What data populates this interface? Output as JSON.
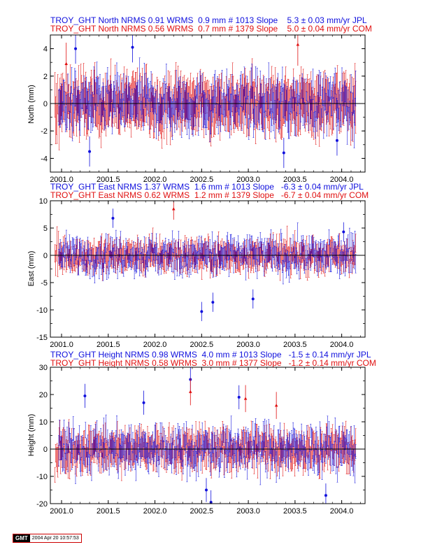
{
  "colors": {
    "jpl": "#1010dd",
    "com": "#e01010",
    "axis": "#000000",
    "zero_line": "#000000"
  },
  "x_axis": {
    "ticks": [
      2001.0,
      2001.5,
      2002.0,
      2002.5,
      2003.0,
      2003.5,
      2004.0
    ],
    "labels": [
      "2001.0",
      "2001.5",
      "2002.0",
      "2002.5",
      "2003.0",
      "2003.5",
      "2004.0"
    ]
  },
  "stamp": {
    "logo": "GMT",
    "timestamp": "2004 Apr 20 10:57:53"
  },
  "chart_data": [
    {
      "type": "scatter",
      "component": "north",
      "title_lines": [
        "TROY_GHT North NRMS 0.91 WRMS  0.9 mm # 1013 Slope    5.3 ± 0.03 mm/yr JPL",
        "TROY_GHT North NRMS 0.56 WRMS  0.7 mm # 1379 Slope    5.0 ± 0.04 mm/yr COM"
      ],
      "ylabel": "North (mm)",
      "ylim": [
        -5,
        5
      ],
      "yticks": [
        -4,
        -2,
        0,
        2,
        4
      ],
      "xlim": [
        2000.88,
        2004.25
      ],
      "series": [
        {
          "name": "JPL",
          "nrms": 0.91,
          "wrms_mm": 0.9,
          "count": 1013,
          "slope_mm_yr": 5.3,
          "slope_sigma": 0.03,
          "x_start": 2000.97,
          "x_end": 2004.15,
          "spread": 0.9,
          "err": 1.0
        },
        {
          "name": "COM",
          "nrms": 0.56,
          "wrms_mm": 0.7,
          "count": 1379,
          "slope_mm_yr": 5.0,
          "slope_sigma": 0.04,
          "x_start": 2000.93,
          "x_end": 2004.15,
          "spread": 0.7,
          "err": 1.4
        }
      ],
      "notable_points": [
        {
          "x": 2001.15,
          "y": 4.0,
          "series": "JPL"
        },
        {
          "x": 2001.05,
          "y": 2.9,
          "series": "COM"
        },
        {
          "x": 2001.76,
          "y": 4.1,
          "series": "JPL"
        },
        {
          "x": 2003.53,
          "y": 4.3,
          "series": "COM"
        },
        {
          "x": 2003.38,
          "y": -3.6,
          "series": "JPL"
        },
        {
          "x": 2003.95,
          "y": -2.7,
          "series": "JPL"
        },
        {
          "x": 2001.3,
          "y": -3.5,
          "series": "JPL"
        }
      ],
      "zero_line": 0
    },
    {
      "type": "scatter",
      "component": "east",
      "title_lines": [
        "TROY_GHT East NRMS 1.37 WRMS  1.6 mm # 1013 Slope   -6.3 ± 0.04 mm/yr JPL",
        "TROY_GHT East NRMS 0.62 WRMS  1.2 mm # 1379 Slope   -6.7 ± 0.04 mm/yr COM"
      ],
      "ylabel": "East (mm)",
      "ylim": [
        -15,
        10
      ],
      "yticks": [
        -15,
        -10,
        -5,
        0,
        5,
        10
      ],
      "xlim": [
        2000.88,
        2004.25
      ],
      "series": [
        {
          "name": "JPL",
          "nrms": 1.37,
          "wrms_mm": 1.6,
          "count": 1013,
          "slope_mm_yr": -6.3,
          "slope_sigma": 0.04,
          "x_start": 2000.97,
          "x_end": 2004.15,
          "spread": 1.6,
          "err": 1.6
        },
        {
          "name": "COM",
          "nrms": 0.62,
          "wrms_mm": 1.2,
          "count": 1379,
          "slope_mm_yr": -6.7,
          "slope_sigma": 0.04,
          "x_start": 2000.93,
          "x_end": 2004.15,
          "spread": 1.2,
          "err": 1.8
        }
      ],
      "notable_points": [
        {
          "x": 2002.2,
          "y": 8.5,
          "series": "COM"
        },
        {
          "x": 2002.5,
          "y": -10.3,
          "series": "JPL"
        },
        {
          "x": 2002.62,
          "y": -8.6,
          "series": "JPL"
        },
        {
          "x": 2001.55,
          "y": 6.8,
          "series": "JPL"
        },
        {
          "x": 2003.05,
          "y": -8.0,
          "series": "JPL"
        },
        {
          "x": 2004.02,
          "y": 4.3,
          "series": "JPL"
        }
      ],
      "zero_line": 0
    },
    {
      "type": "scatter",
      "component": "height",
      "title_lines": [
        "TROY_GHT Height NRMS 0.98 WRMS  4.0 mm # 1013 Slope   -1.5 ± 0.14 mm/yr JPL",
        "TROY_GHT Height NRMS 0.58 WRMS  3.0 mm # 1377 Slope   -1.2 ± 0.14 mm/yr COM"
      ],
      "ylabel": "Height (mm)",
      "ylim": [
        -20,
        30
      ],
      "yticks": [
        -20,
        -10,
        0,
        10,
        20,
        30
      ],
      "xlim": [
        2000.88,
        2004.25
      ],
      "series": [
        {
          "name": "JPL",
          "nrms": 0.98,
          "wrms_mm": 4.0,
          "count": 1013,
          "slope_mm_yr": -1.5,
          "slope_sigma": 0.14,
          "x_start": 2000.97,
          "x_end": 2004.15,
          "spread": 4.0,
          "err": 4.0
        },
        {
          "name": "COM",
          "nrms": 0.58,
          "wrms_mm": 3.0,
          "count": 1377,
          "slope_mm_yr": -1.2,
          "slope_sigma": 0.14,
          "x_start": 2000.93,
          "x_end": 2004.15,
          "spread": 3.0,
          "err": 4.5
        }
      ],
      "notable_points": [
        {
          "x": 2002.38,
          "y": 25.5,
          "series": "JPL"
        },
        {
          "x": 2002.38,
          "y": 21.0,
          "series": "COM"
        },
        {
          "x": 2002.9,
          "y": 19.0,
          "series": "JPL"
        },
        {
          "x": 2002.97,
          "y": 18.5,
          "series": "COM"
        },
        {
          "x": 2003.3,
          "y": 16.0,
          "series": "COM"
        },
        {
          "x": 2002.55,
          "y": -15.0,
          "series": "JPL"
        },
        {
          "x": 2003.83,
          "y": -17.0,
          "series": "JPL"
        },
        {
          "x": 2002.6,
          "y": -19.5,
          "series": "JPL"
        },
        {
          "x": 2001.25,
          "y": 19.5,
          "series": "JPL"
        },
        {
          "x": 2001.88,
          "y": 17.0,
          "series": "JPL"
        }
      ],
      "zero_line": 0
    }
  ]
}
